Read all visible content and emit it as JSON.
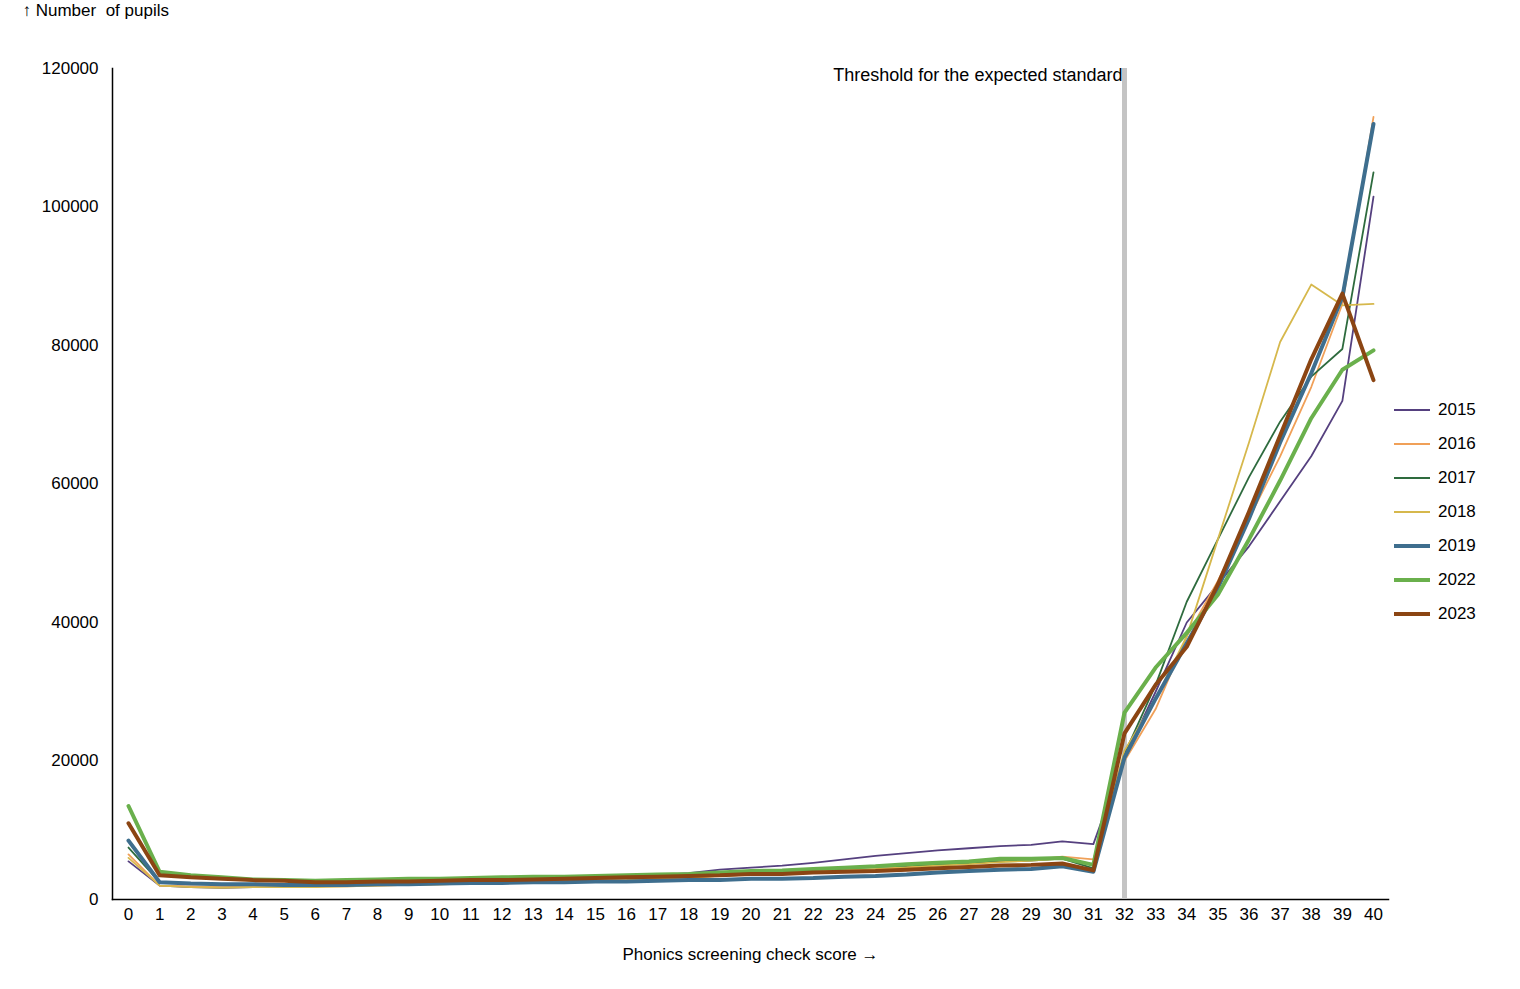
{
  "chart_data": {
    "type": "line",
    "x_label": "Phonics screening check score",
    "y_label": "Number  of pupils",
    "x": [
      0,
      1,
      2,
      3,
      4,
      5,
      6,
      7,
      8,
      9,
      10,
      11,
      12,
      13,
      14,
      15,
      16,
      17,
      18,
      19,
      20,
      21,
      22,
      23,
      24,
      25,
      26,
      27,
      28,
      29,
      30,
      31,
      32,
      33,
      34,
      35,
      36,
      37,
      38,
      39,
      40
    ],
    "xlim": [
      0,
      40
    ],
    "xticks": [
      0,
      1,
      2,
      3,
      4,
      5,
      6,
      7,
      8,
      9,
      10,
      11,
      12,
      13,
      14,
      15,
      16,
      17,
      18,
      19,
      20,
      21,
      22,
      23,
      24,
      25,
      26,
      27,
      28,
      29,
      30,
      31,
      32,
      33,
      34,
      35,
      36,
      37,
      38,
      39,
      40
    ],
    "ylim": [
      0,
      120000
    ],
    "yticks": [
      0,
      20000,
      40000,
      60000,
      80000,
      100000,
      120000
    ],
    "grid": false,
    "legend": "right",
    "annotations": [
      {
        "x": 32,
        "text": "Threshold for the expected standard"
      }
    ],
    "series": [
      {
        "name": "2015",
        "color": "#55407f",
        "values": [
          5500,
          2000,
          1800,
          1700,
          1800,
          1800,
          1900,
          2000,
          2100,
          2200,
          2400,
          2600,
          2700,
          2800,
          2900,
          3100,
          3200,
          3500,
          3800,
          4300,
          4600,
          4900,
          5300,
          5800,
          6300,
          6700,
          7100,
          7400,
          7700,
          7900,
          8400,
          8000,
          20500,
          30000,
          40000,
          45500,
          51000,
          57500,
          64000,
          72000,
          101500
        ]
      },
      {
        "name": "2016",
        "color": "#f0a058",
        "values": [
          6500,
          2000,
          1900,
          1800,
          1900,
          1900,
          1900,
          1900,
          2000,
          2100,
          2200,
          2300,
          2400,
          2500,
          2600,
          2700,
          2800,
          3000,
          3200,
          3400,
          3600,
          3800,
          4000,
          4200,
          4400,
          4700,
          5000,
          5200,
          5500,
          5700,
          6200,
          5800,
          20000,
          27500,
          38000,
          46000,
          55000,
          64000,
          74000,
          86000,
          113000
        ]
      },
      {
        "name": "2017",
        "color": "#2e6b3e",
        "values": [
          7500,
          2500,
          2300,
          2200,
          2200,
          2200,
          2200,
          2200,
          2300,
          2400,
          2500,
          2600,
          2700,
          2800,
          2900,
          3000,
          3100,
          3300,
          3500,
          3700,
          3900,
          4100,
          4300,
          4500,
          4700,
          4900,
          5100,
          5300,
          5500,
          5600,
          5900,
          4500,
          21000,
          31000,
          43000,
          52000,
          61000,
          69000,
          75500,
          79500,
          105000
        ]
      },
      {
        "name": "2018",
        "color": "#d6b84c",
        "values": [
          6000,
          2000,
          1800,
          1700,
          1800,
          1800,
          1800,
          1900,
          2000,
          2100,
          2200,
          2300,
          2400,
          2500,
          2600,
          2700,
          2800,
          3000,
          3200,
          3400,
          3600,
          3800,
          4000,
          4200,
          4400,
          4600,
          4900,
          5100,
          5400,
          5600,
          5900,
          5000,
          21500,
          29000,
          38000,
          52000,
          66000,
          80500,
          88800,
          85800,
          86000
        ]
      },
      {
        "name": "2019",
        "color": "#3e6e8e",
        "values": [
          8500,
          2500,
          2300,
          2200,
          2200,
          2100,
          2100,
          2100,
          2200,
          2200,
          2300,
          2400,
          2400,
          2500,
          2500,
          2600,
          2600,
          2700,
          2800,
          2800,
          3000,
          3000,
          3100,
          3300,
          3400,
          3600,
          3900,
          4100,
          4300,
          4400,
          4800,
          4000,
          20500,
          29000,
          37000,
          45000,
          55000,
          66000,
          76000,
          87000,
          112000
        ]
      },
      {
        "name": "2022",
        "color": "#6ab04c",
        "values": [
          13500,
          4000,
          3500,
          3200,
          2900,
          2800,
          2700,
          2800,
          2900,
          3000,
          3000,
          3100,
          3200,
          3300,
          3300,
          3400,
          3500,
          3600,
          3700,
          3900,
          4100,
          4200,
          4400,
          4600,
          4800,
          5100,
          5300,
          5500,
          5900,
          5900,
          6000,
          5000,
          27000,
          33500,
          38500,
          44000,
          52000,
          60500,
          69500,
          76500,
          79300
        ]
      },
      {
        "name": "2023",
        "color": "#8b4513",
        "values": [
          11000,
          3500,
          3200,
          3000,
          2800,
          2700,
          2500,
          2500,
          2600,
          2600,
          2700,
          2800,
          2800,
          2900,
          3000,
          3100,
          3200,
          3300,
          3400,
          3500,
          3700,
          3700,
          3900,
          4000,
          4100,
          4300,
          4500,
          4700,
          4900,
          5000,
          5200,
          4200,
          24000,
          31000,
          36500,
          45500,
          56000,
          67000,
          78000,
          87500,
          75000
        ]
      }
    ]
  }
}
